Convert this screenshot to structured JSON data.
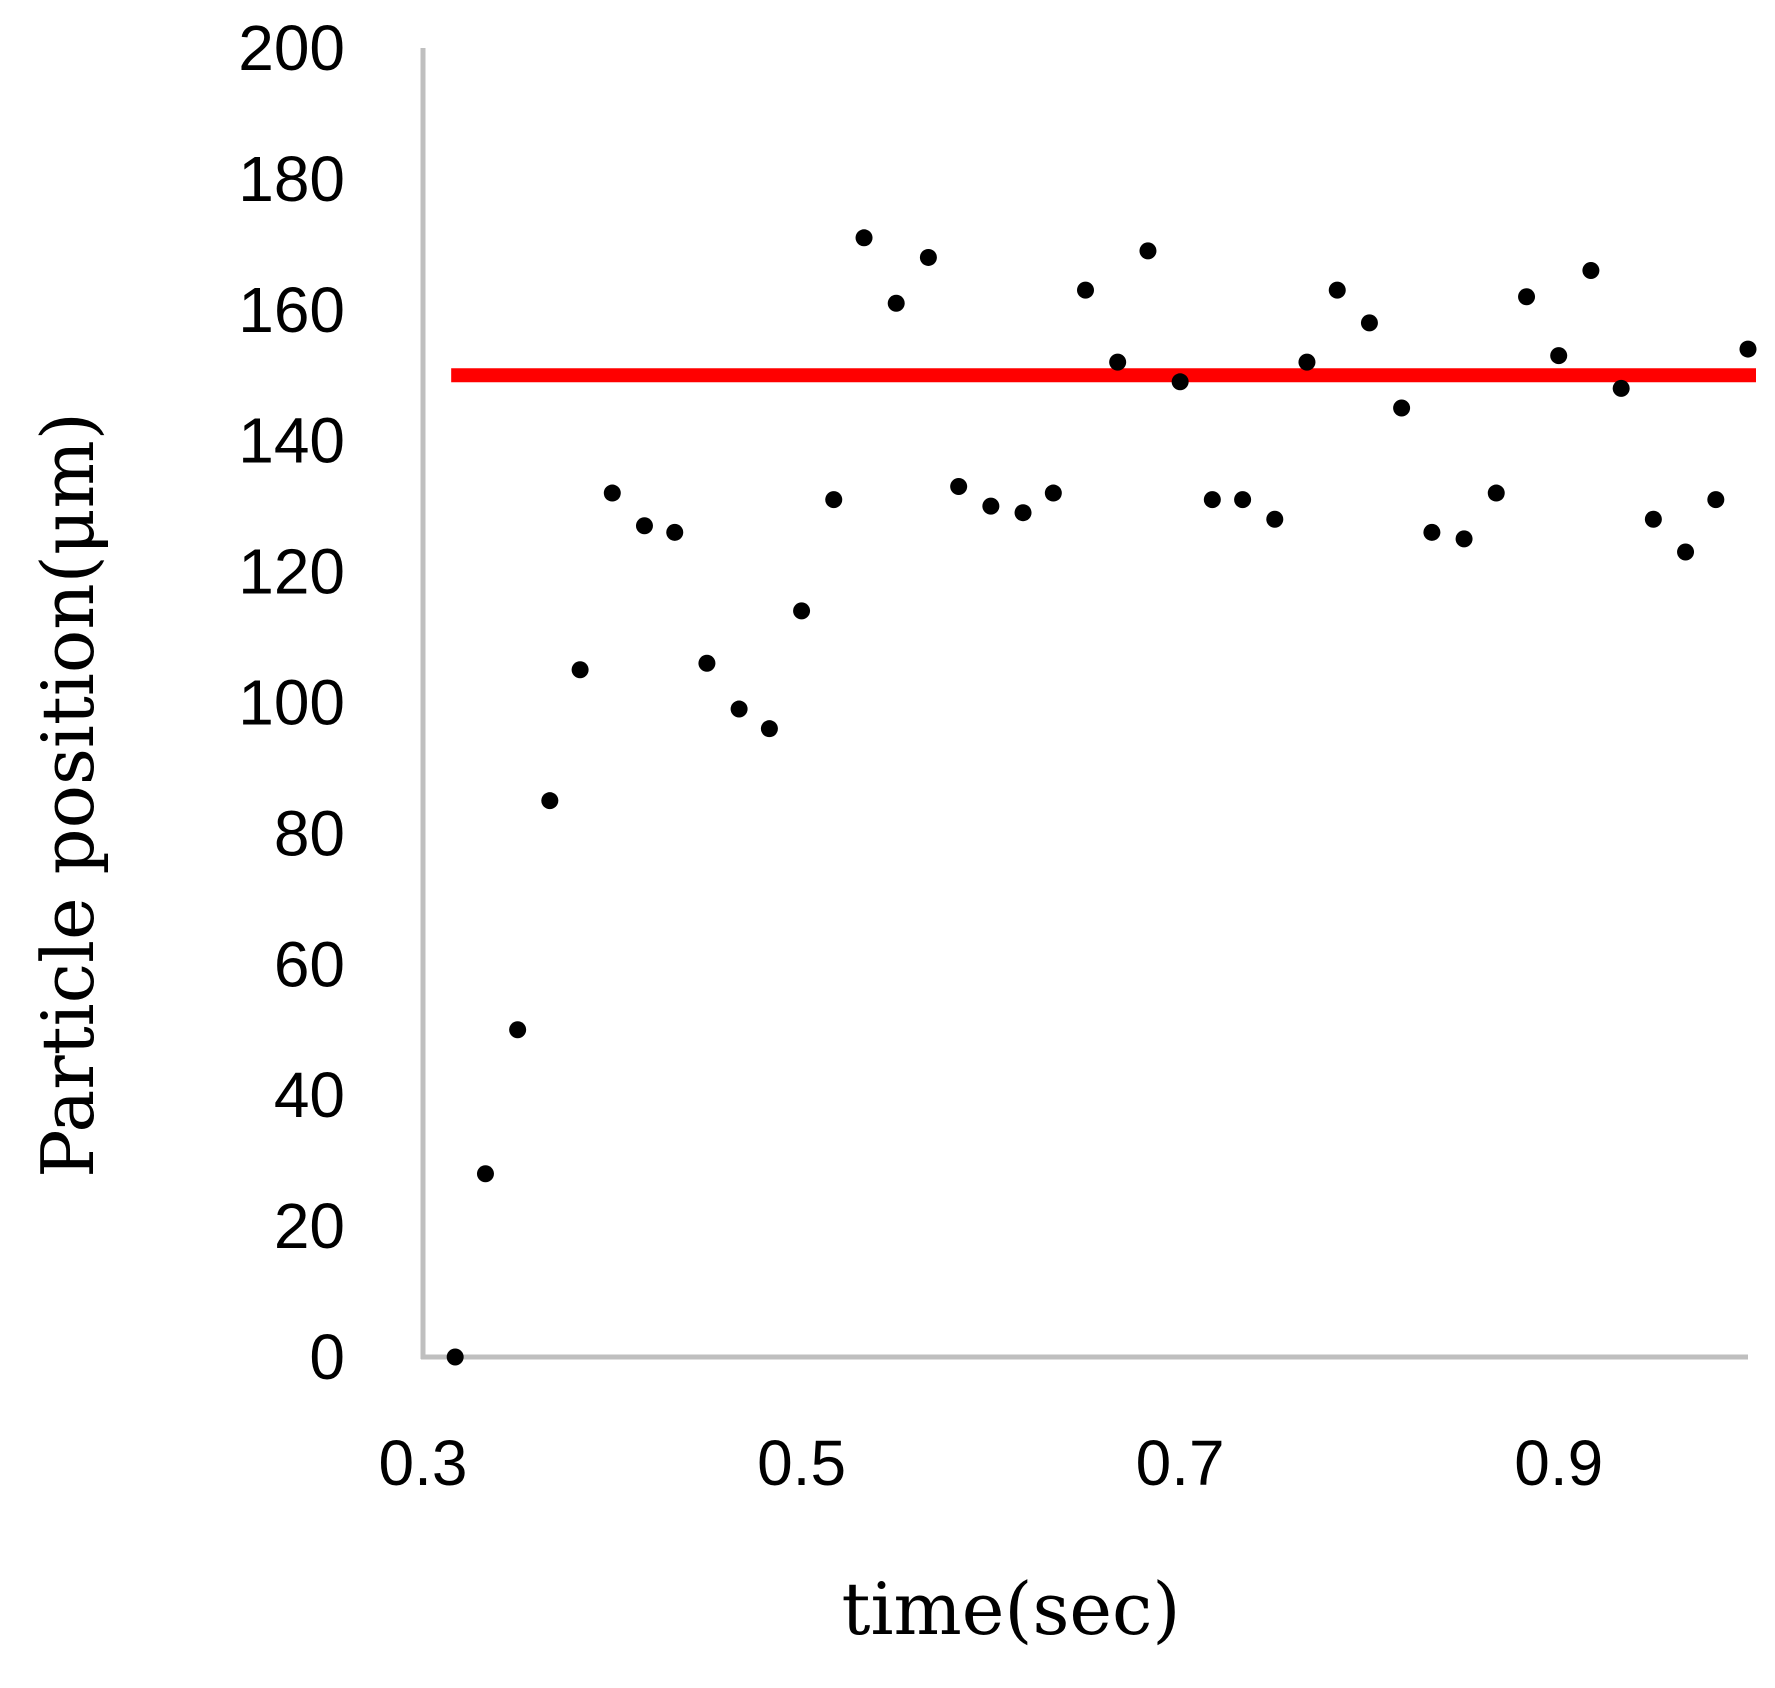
{
  "chart_data": {
    "type": "scatter",
    "xlabel": "time(sec)",
    "ylabel": "Particle position(μm)",
    "xlim": [
      0.3,
      1.0
    ],
    "ylim": [
      0,
      200
    ],
    "x_ticks": [
      "0.3",
      "0.5",
      "0.7",
      "0.9"
    ],
    "y_ticks": [
      "0",
      "20",
      "40",
      "60",
      "80",
      "100",
      "120",
      "140",
      "160",
      "180",
      "200"
    ],
    "grid": false,
    "legend": "none",
    "colors": {
      "points": "#000000",
      "reference_line": "#ff0000",
      "axes": "#bfbfbf"
    },
    "reference_line": {
      "y": 150,
      "x_start": 0.317,
      "x_end": 1.0
    },
    "series": [
      {
        "x": [
          0.317,
          0.333,
          0.35,
          0.367,
          0.383,
          0.4,
          0.417,
          0.433,
          0.45,
          0.467,
          0.483,
          0.5,
          0.517,
          0.533,
          0.55,
          0.567,
          0.583,
          0.6,
          0.617,
          0.633,
          0.65,
          0.667,
          0.683,
          0.7,
          0.717,
          0.733,
          0.75,
          0.767,
          0.783,
          0.8,
          0.817,
          0.833,
          0.85,
          0.867,
          0.883,
          0.9,
          0.917,
          0.933,
          0.95,
          0.967,
          0.983,
          1.0
        ],
        "y": [
          0,
          28,
          50,
          85,
          105,
          132,
          127,
          126,
          106,
          99,
          96,
          114,
          131,
          171,
          161,
          168,
          133,
          130,
          129,
          132,
          163,
          152,
          169,
          149,
          131,
          131,
          128,
          152,
          163,
          158,
          145,
          126,
          125,
          132,
          162,
          153,
          166,
          148,
          128,
          123,
          131,
          154
        ]
      }
    ]
  }
}
